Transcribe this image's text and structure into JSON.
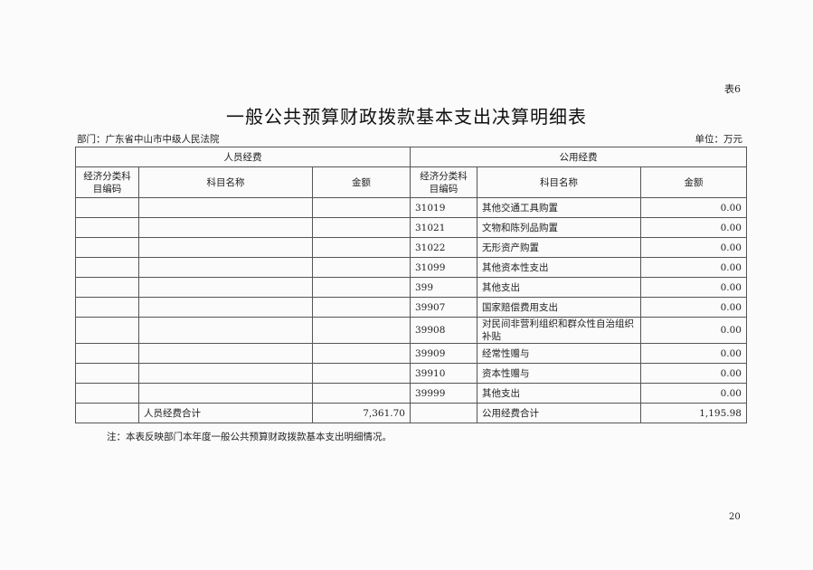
{
  "table_no": "表6",
  "title": "一般公共预算财政拨款基本支出决算明细表",
  "department": "部门：广东省中山市中级人民法院",
  "unit": "单位：万元",
  "groups": {
    "personnel": "人员经费",
    "public": "公用经费"
  },
  "headers": {
    "code": "经济分类科目编码",
    "name": "科目名称",
    "amount": "金额"
  },
  "rows": [
    {
      "p_code": "",
      "p_name": "",
      "p_amount": "",
      "code": "31019",
      "name": "其他交通工具购置",
      "amount": "0.00"
    },
    {
      "p_code": "",
      "p_name": "",
      "p_amount": "",
      "code": "31021",
      "name": "文物和陈列品购置",
      "amount": "0.00"
    },
    {
      "p_code": "",
      "p_name": "",
      "p_amount": "",
      "code": "31022",
      "name": "无形资产购置",
      "amount": "0.00"
    },
    {
      "p_code": "",
      "p_name": "",
      "p_amount": "",
      "code": "31099",
      "name": "其他资本性支出",
      "amount": "0.00"
    },
    {
      "p_code": "",
      "p_name": "",
      "p_amount": "",
      "code": "399",
      "name": "其他支出",
      "amount": "0.00"
    },
    {
      "p_code": "",
      "p_name": "",
      "p_amount": "",
      "code": "39907",
      "name": "国家赔偿费用支出",
      "amount": "0.00"
    },
    {
      "p_code": "",
      "p_name": "",
      "p_amount": "",
      "code": "39908",
      "name": "对民间非营利组织和群众性自治组织补贴",
      "amount": "0.00"
    },
    {
      "p_code": "",
      "p_name": "",
      "p_amount": "",
      "code": "39909",
      "name": "经常性赠与",
      "amount": "0.00"
    },
    {
      "p_code": "",
      "p_name": "",
      "p_amount": "",
      "code": "39910",
      "name": "资本性赠与",
      "amount": "0.00"
    },
    {
      "p_code": "",
      "p_name": "",
      "p_amount": "",
      "code": "39999",
      "name": "其他支出",
      "amount": "0.00"
    }
  ],
  "totals": {
    "personnel_label": "人员经费合计",
    "personnel_amount": "7,361.70",
    "public_label": "公用经费合计",
    "public_amount": "1,195.98"
  },
  "note": "注：本表反映部门本年度一般公共预算财政拨款基本支出明细情况。",
  "page_number": "20"
}
